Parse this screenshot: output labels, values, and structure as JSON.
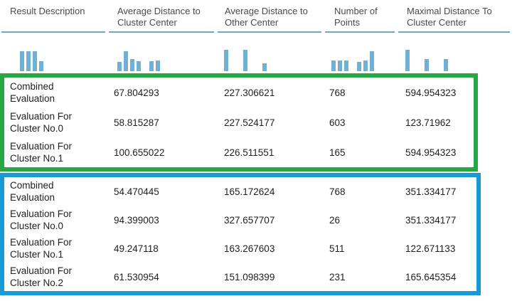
{
  "table": {
    "columns": [
      {
        "id": "result-description",
        "label": "Result Description"
      },
      {
        "id": "avg-distance-to-cluster-center",
        "label": "Average Distance to Cluster Center"
      },
      {
        "id": "avg-distance-to-other-center",
        "label": "Average Distance to Other Center"
      },
      {
        "id": "number-of-points",
        "label": "Number of Points"
      },
      {
        "id": "maximal-distance-to-cluster-center",
        "label": "Maximal Distance To Cluster Center"
      }
    ],
    "sparklines": [
      [
        0.93,
        0.93,
        0.93,
        0.47
      ],
      [
        0.43,
        0.93,
        0.57,
        0.47,
        0,
        0.47,
        0.5
      ],
      [
        1,
        0,
        0,
        1,
        0,
        0,
        0.38
      ],
      [
        0.5,
        0.5,
        0.5,
        0,
        0.43,
        0.5,
        0.93
      ],
      [
        1,
        0,
        0,
        0.57,
        0,
        0,
        0.57
      ]
    ],
    "groups": [
      {
        "name": "highlight-group-green",
        "highlight_color": "#27A845",
        "rows": [
          {
            "description": "Combined Evaluation",
            "avg_to_cluster_center": "67.804293",
            "avg_to_other_center": "227.306621",
            "num_points": "768",
            "max_to_cluster_center": "594.954323"
          },
          {
            "description": "Evaluation For Cluster No.0",
            "avg_to_cluster_center": "58.815287",
            "avg_to_other_center": "227.524177",
            "num_points": "603",
            "max_to_cluster_center": "123.71962"
          },
          {
            "description": "Evaluation For Cluster No.1",
            "avg_to_cluster_center": "100.655022",
            "avg_to_other_center": "226.511551",
            "num_points": "165",
            "max_to_cluster_center": "594.954323"
          }
        ]
      },
      {
        "name": "highlight-group-blue",
        "highlight_color": "#189AD6",
        "rows": [
          {
            "description": "Combined Evaluation",
            "avg_to_cluster_center": "54.470445",
            "avg_to_other_center": "165.172624",
            "num_points": "768",
            "max_to_cluster_center": "351.334177"
          },
          {
            "description": "Evaluation For Cluster No.0",
            "avg_to_cluster_center": "94.399003",
            "avg_to_other_center": "327.657707",
            "num_points": "26",
            "max_to_cluster_center": "351.334177"
          },
          {
            "description": "Evaluation For Cluster No.1",
            "avg_to_cluster_center": "49.247118",
            "avg_to_other_center": "163.267603",
            "num_points": "511",
            "max_to_cluster_center": "122.671133"
          },
          {
            "description": "Evaluation For Cluster No.2",
            "avg_to_cluster_center": "61.530954",
            "avg_to_other_center": "151.098399",
            "num_points": "231",
            "max_to_cluster_center": "165.645354"
          }
        ]
      }
    ]
  },
  "colors": {
    "histogram_bar": "#6FB0D4",
    "header_underline": "#6EA7C9",
    "green_highlight": "#27A845",
    "blue_highlight": "#189AD6",
    "header_text": "#4A4A4A",
    "body_text": "#1E1E1E"
  }
}
